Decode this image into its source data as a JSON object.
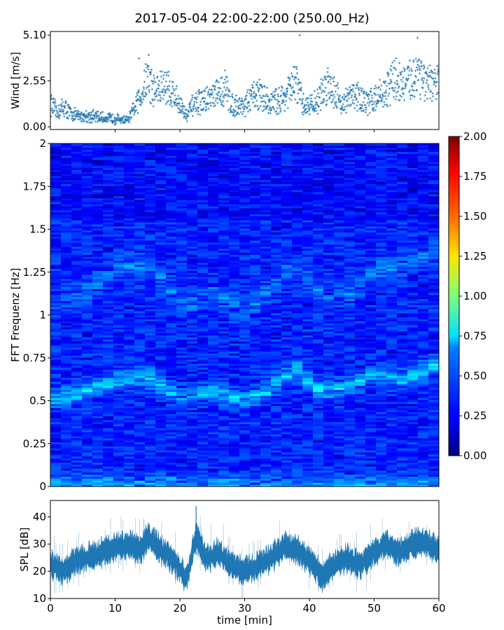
{
  "title": "2017-05-04 22:00-22:00 (250.00_Hz)",
  "chart_data": [
    {
      "type": "scatter",
      "panel": "wind",
      "ylabel": "Wind [m/s]",
      "yticks": [
        "0.00",
        "2.55",
        "5.10"
      ],
      "ylim": [
        -0.15,
        5.3
      ],
      "xlim": [
        0,
        60
      ],
      "marker": "+",
      "color": "#1f77b4",
      "trend": [
        {
          "x": 0,
          "y": 1.3
        },
        {
          "x": 1,
          "y": 0.8
        },
        {
          "x": 2,
          "y": 1.1
        },
        {
          "x": 3,
          "y": 0.8
        },
        {
          "x": 4,
          "y": 0.6
        },
        {
          "x": 6,
          "y": 0.6
        },
        {
          "x": 8,
          "y": 0.5
        },
        {
          "x": 10,
          "y": 0.45
        },
        {
          "x": 12,
          "y": 0.35
        },
        {
          "x": 13,
          "y": 1.0
        },
        {
          "x": 14,
          "y": 1.8
        },
        {
          "x": 15,
          "y": 2.8
        },
        {
          "x": 16,
          "y": 2.0
        },
        {
          "x": 18,
          "y": 2.3
        },
        {
          "x": 20,
          "y": 1.3
        },
        {
          "x": 21,
          "y": 0.6
        },
        {
          "x": 22,
          "y": 1.2
        },
        {
          "x": 24,
          "y": 1.5
        },
        {
          "x": 26,
          "y": 1.8
        },
        {
          "x": 27,
          "y": 2.2
        },
        {
          "x": 28,
          "y": 1.2
        },
        {
          "x": 30,
          "y": 1.2
        },
        {
          "x": 32,
          "y": 1.9
        },
        {
          "x": 34,
          "y": 1.3
        },
        {
          "x": 36,
          "y": 1.6
        },
        {
          "x": 38,
          "y": 2.5
        },
        {
          "x": 39,
          "y": 1.2
        },
        {
          "x": 41,
          "y": 1.3
        },
        {
          "x": 43,
          "y": 2.5
        },
        {
          "x": 45,
          "y": 1.3
        },
        {
          "x": 47,
          "y": 1.8
        },
        {
          "x": 49,
          "y": 1.3
        },
        {
          "x": 50,
          "y": 1.6
        },
        {
          "x": 52,
          "y": 2.0
        },
        {
          "x": 53,
          "y": 2.7
        },
        {
          "x": 55,
          "y": 2.3
        },
        {
          "x": 57,
          "y": 3.2
        },
        {
          "x": 58,
          "y": 2.2
        },
        {
          "x": 60,
          "y": 2.5
        }
      ],
      "peaks": [
        {
          "x": 38.5,
          "y": 5.1
        },
        {
          "x": 56.7,
          "y": 4.95
        },
        {
          "x": 15.2,
          "y": 4.0
        },
        {
          "x": 13.7,
          "y": 3.8
        }
      ]
    },
    {
      "type": "heatmap",
      "panel": "spectrogram",
      "ylabel": "FFT Frequenz [Hz]",
      "yticks": [
        "0",
        "0.25",
        "0.5",
        "0.75",
        "1",
        "1.25",
        "1.5",
        "1.75",
        "2"
      ],
      "xlim": [
        0,
        60
      ],
      "ylim": [
        0,
        2
      ],
      "colormap": "jet",
      "clim": [
        0,
        2
      ],
      "colorbar_ticks": [
        "0.00",
        "0.25",
        "0.50",
        "0.75",
        "1.00",
        "1.25",
        "1.50",
        "1.75",
        "2.00"
      ],
      "ridge_lower": [
        {
          "x": 0,
          "y": 0.51
        },
        {
          "x": 5,
          "y": 0.55
        },
        {
          "x": 10,
          "y": 0.62
        },
        {
          "x": 15,
          "y": 0.64
        },
        {
          "x": 20,
          "y": 0.52
        },
        {
          "x": 25,
          "y": 0.55
        },
        {
          "x": 30,
          "y": 0.5
        },
        {
          "x": 35,
          "y": 0.6
        },
        {
          "x": 38,
          "y": 0.68
        },
        {
          "x": 42,
          "y": 0.55
        },
        {
          "x": 46,
          "y": 0.58
        },
        {
          "x": 50,
          "y": 0.66
        },
        {
          "x": 55,
          "y": 0.62
        },
        {
          "x": 60,
          "y": 0.72
        }
      ],
      "ridge_upper": [
        {
          "x": 0,
          "y": 1.05
        },
        {
          "x": 5,
          "y": 1.12
        },
        {
          "x": 10,
          "y": 1.28
        },
        {
          "x": 15,
          "y": 1.3
        },
        {
          "x": 20,
          "y": 1.05
        },
        {
          "x": 25,
          "y": 1.12
        },
        {
          "x": 30,
          "y": 1.0
        },
        {
          "x": 35,
          "y": 1.2
        },
        {
          "x": 38,
          "y": 1.3
        },
        {
          "x": 42,
          "y": 1.1
        },
        {
          "x": 46,
          "y": 1.12
        },
        {
          "x": 50,
          "y": 1.25
        },
        {
          "x": 55,
          "y": 1.3
        },
        {
          "x": 60,
          "y": 1.38
        }
      ]
    },
    {
      "type": "area",
      "panel": "spl",
      "ylabel": "SPL [dB]",
      "xlabel": "time [min]",
      "yticks": [
        "10",
        "20",
        "30",
        "40"
      ],
      "xticks": [
        "0",
        "10",
        "20",
        "30",
        "40",
        "50",
        "60"
      ],
      "xlim": [
        0,
        60
      ],
      "ylim": [
        10,
        46
      ],
      "color": "#1f77b4",
      "trend": [
        {
          "x": 0,
          "y": 22
        },
        {
          "x": 2,
          "y": 20
        },
        {
          "x": 4,
          "y": 24
        },
        {
          "x": 6,
          "y": 25
        },
        {
          "x": 8,
          "y": 27
        },
        {
          "x": 10,
          "y": 29
        },
        {
          "x": 12,
          "y": 30
        },
        {
          "x": 14,
          "y": 28
        },
        {
          "x": 15,
          "y": 33
        },
        {
          "x": 17,
          "y": 28
        },
        {
          "x": 19,
          "y": 24
        },
        {
          "x": 21,
          "y": 17
        },
        {
          "x": 22.5,
          "y": 33
        },
        {
          "x": 24,
          "y": 25
        },
        {
          "x": 26,
          "y": 27
        },
        {
          "x": 28,
          "y": 22
        },
        {
          "x": 30,
          "y": 20
        },
        {
          "x": 32,
          "y": 22
        },
        {
          "x": 34,
          "y": 25
        },
        {
          "x": 36,
          "y": 29
        },
        {
          "x": 38,
          "y": 28
        },
        {
          "x": 40,
          "y": 24
        },
        {
          "x": 42,
          "y": 18
        },
        {
          "x": 44,
          "y": 23
        },
        {
          "x": 46,
          "y": 25
        },
        {
          "x": 48,
          "y": 22
        },
        {
          "x": 50,
          "y": 27
        },
        {
          "x": 52,
          "y": 30
        },
        {
          "x": 54,
          "y": 27
        },
        {
          "x": 56,
          "y": 30
        },
        {
          "x": 58,
          "y": 31
        },
        {
          "x": 60,
          "y": 27
        }
      ]
    }
  ]
}
